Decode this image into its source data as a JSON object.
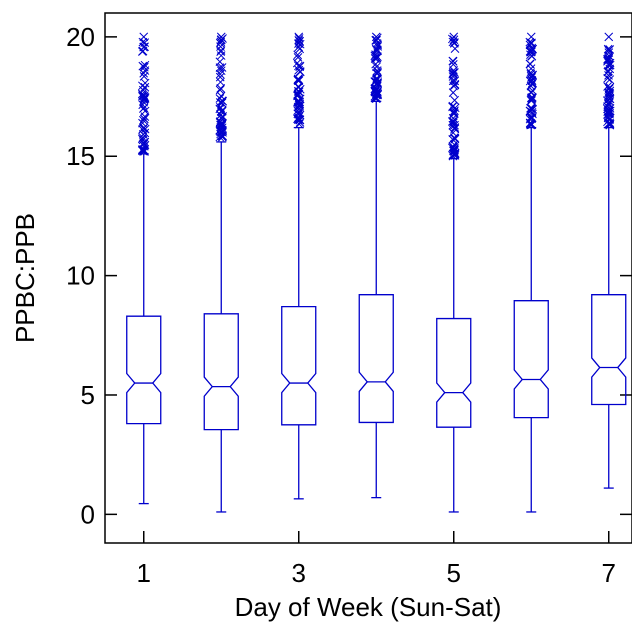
{
  "chart_data": {
    "type": "box",
    "title": "",
    "xlabel": "Day of Week (Sun-Sat)",
    "ylabel": "PPBC:PPB",
    "xlim": [
      0.5,
      7.3
    ],
    "ylim": [
      -1.2,
      21
    ],
    "x_ticks": [
      1,
      3,
      5,
      7
    ],
    "y_ticks": [
      0,
      5,
      10,
      15,
      20
    ],
    "notched": true,
    "color": "#0000cc",
    "grid": false,
    "boxes": [
      {
        "x": 1,
        "whisker_low": 0.45,
        "q1": 3.8,
        "median": 5.5,
        "notch_low": 5.1,
        "notch_high": 5.9,
        "q3": 8.3,
        "whisker_high": 15.1,
        "outlier_min": 15.2,
        "outlier_max": 20.0
      },
      {
        "x": 2,
        "whisker_low": 0.1,
        "q1": 3.55,
        "median": 5.35,
        "notch_low": 4.95,
        "notch_high": 5.75,
        "q3": 8.4,
        "whisker_high": 15.6,
        "outlier_min": 15.8,
        "outlier_max": 20.0
      },
      {
        "x": 3,
        "whisker_low": 0.65,
        "q1": 3.75,
        "median": 5.5,
        "notch_low": 5.1,
        "notch_high": 5.9,
        "q3": 8.7,
        "whisker_high": 16.2,
        "outlier_min": 16.3,
        "outlier_max": 20.0
      },
      {
        "x": 4,
        "whisker_low": 0.7,
        "q1": 3.85,
        "median": 5.55,
        "notch_low": 5.15,
        "notch_high": 5.95,
        "q3": 9.2,
        "whisker_high": 17.3,
        "outlier_min": 17.4,
        "outlier_max": 20.0
      },
      {
        "x": 5,
        "whisker_low": 0.1,
        "q1": 3.65,
        "median": 5.1,
        "notch_low": 4.7,
        "notch_high": 5.5,
        "q3": 8.2,
        "whisker_high": 14.9,
        "outlier_min": 15.0,
        "outlier_max": 20.0
      },
      {
        "x": 6,
        "whisker_low": 0.1,
        "q1": 4.05,
        "median": 5.65,
        "notch_low": 5.25,
        "notch_high": 6.05,
        "q3": 8.95,
        "whisker_high": 16.2,
        "outlier_min": 16.3,
        "outlier_max": 20.0
      },
      {
        "x": 7,
        "whisker_low": 1.1,
        "q1": 4.6,
        "median": 6.15,
        "notch_low": 5.75,
        "notch_high": 6.55,
        "q3": 9.2,
        "whisker_high": 16.2,
        "outlier_min": 16.3,
        "outlier_max": 20.0
      }
    ]
  }
}
